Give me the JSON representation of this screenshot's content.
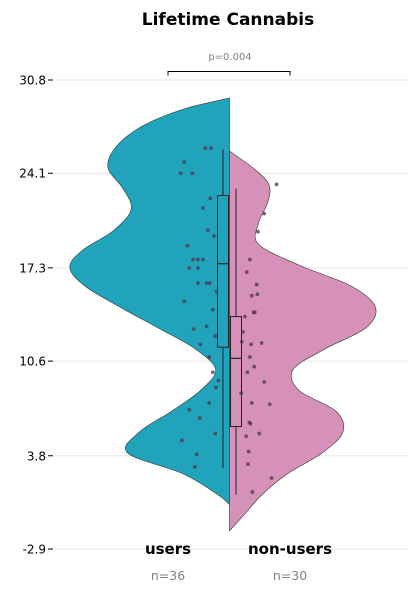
{
  "chart_data": {
    "type": "split-violin",
    "title": "Lifetime Cannabis",
    "xlabel": "",
    "ylabel": "",
    "ylim": [
      -2.9,
      30.8
    ],
    "yticks": [
      "-2.9",
      "3.8",
      "10.6",
      "17.3",
      "24.1",
      "30.8"
    ],
    "ytick_values": [
      -2.9,
      3.8,
      10.6,
      17.3,
      24.1,
      30.8
    ],
    "grid": "horizontal",
    "annotation": {
      "text": "p=0.004"
    },
    "groups": [
      {
        "name": "users",
        "n_label": "n=36",
        "color": "#21a3bb",
        "side": "left",
        "violin_range": [
          0.3,
          29.5
        ],
        "violin_profile": [
          [
            0.3,
            0
          ],
          [
            1.0,
            0.1
          ],
          [
            2.5,
            0.4
          ],
          [
            4.0,
            0.88
          ],
          [
            5.5,
            0.78
          ],
          [
            7.0,
            0.5
          ],
          [
            8.5,
            0.25
          ],
          [
            10.0,
            0.12
          ],
          [
            11.5,
            0.3
          ],
          [
            13.0,
            0.62
          ],
          [
            14.5,
            0.95
          ],
          [
            16.0,
            1.25
          ],
          [
            17.3,
            1.38
          ],
          [
            18.5,
            1.28
          ],
          [
            20.0,
            1.0
          ],
          [
            21.5,
            0.85
          ],
          [
            23.0,
            0.92
          ],
          [
            24.5,
            1.05
          ],
          [
            26.0,
            0.98
          ],
          [
            27.5,
            0.75
          ],
          [
            28.7,
            0.4
          ],
          [
            29.5,
            0
          ]
        ],
        "box": {
          "q1": 11.6,
          "median": 17.6,
          "q3": 22.5,
          "whisker_low": 2.9,
          "whisker_high": 25.8
        },
        "points": [
          [
            25.9,
            0.26
          ],
          [
            25.9,
            0.17
          ],
          [
            24.9,
            0.6
          ],
          [
            24.1,
            0.66
          ],
          [
            24.1,
            0.47
          ],
          [
            22.3,
            0.18
          ],
          [
            20.0,
            0.22
          ],
          [
            18.9,
            0.55
          ],
          [
            17.9,
            0.46
          ],
          [
            17.9,
            0.38
          ],
          [
            17.9,
            0.3
          ],
          [
            17.3,
            0.38
          ],
          [
            17.3,
            0.52
          ],
          [
            16.2,
            0.38
          ],
          [
            16.2,
            0.19
          ],
          [
            16.2,
            0.24
          ],
          [
            15.6,
            0.08
          ],
          [
            14.3,
            0.14
          ],
          [
            13.1,
            0.24
          ],
          [
            12.4,
            0.1
          ],
          [
            11.8,
            0.34
          ],
          [
            10.9,
            0.2
          ],
          [
            9.8,
            0.14
          ],
          [
            8.7,
            0.09
          ],
          [
            7.6,
            0.2
          ],
          [
            6.5,
            0.35
          ],
          [
            5.4,
            0.1
          ],
          [
            4.9,
            0.64
          ],
          [
            3.9,
            0.4
          ],
          [
            3.0,
            0.43
          ],
          [
            7.1,
            0.52
          ],
          [
            9.2,
            0.05
          ],
          [
            14.9,
            0.6
          ],
          [
            19.6,
            0.12
          ],
          [
            12.9,
            0.45
          ],
          [
            21.6,
            0.3
          ]
        ]
      },
      {
        "name": "non-users",
        "n_label": "n=30",
        "color": "#d591b8",
        "side": "right",
        "violin_range": [
          -1.6,
          25.7
        ],
        "violin_profile": [
          [
            -1.6,
            0
          ],
          [
            -0.5,
            0.12
          ],
          [
            1.0,
            0.28
          ],
          [
            2.5,
            0.5
          ],
          [
            4.0,
            0.8
          ],
          [
            5.5,
            0.98
          ],
          [
            7.0,
            0.92
          ],
          [
            8.5,
            0.6
          ],
          [
            10.0,
            0.55
          ],
          [
            11.5,
            0.83
          ],
          [
            13.0,
            1.18
          ],
          [
            14.5,
            1.26
          ],
          [
            16.0,
            1.05
          ],
          [
            17.5,
            0.6
          ],
          [
            19.0,
            0.25
          ],
          [
            20.5,
            0.25
          ],
          [
            22.0,
            0.33
          ],
          [
            23.3,
            0.34
          ],
          [
            24.5,
            0.2
          ],
          [
            25.7,
            0
          ]
        ],
        "box": {
          "q1": 5.9,
          "median": 10.8,
          "q3": 13.8,
          "whisker_low": 1.0,
          "whisker_high": 23.0
        },
        "points": [
          [
            23.3,
            0.63
          ],
          [
            21.2,
            0.43
          ],
          [
            19.9,
            0.33
          ],
          [
            17.9,
            0.2
          ],
          [
            16.1,
            0.31
          ],
          [
            15.4,
            0.32
          ],
          [
            15.3,
            0.23
          ],
          [
            14.1,
            0.28
          ],
          [
            14.1,
            0.26
          ],
          [
            13.8,
            0.12
          ],
          [
            12.0,
            0.07
          ],
          [
            11.9,
            0.39
          ],
          [
            11.8,
            0.22
          ],
          [
            10.9,
            0.2
          ],
          [
            10.2,
            0.27
          ],
          [
            9.8,
            0.16
          ],
          [
            9.1,
            0.43
          ],
          [
            7.6,
            0.23
          ],
          [
            7.5,
            0.52
          ],
          [
            6.2,
            0.19
          ],
          [
            6.1,
            0.21
          ],
          [
            5.2,
            0.14
          ],
          [
            4.1,
            0.18
          ],
          [
            3.2,
            0.17
          ],
          [
            2.2,
            0.55
          ],
          [
            1.2,
            0.24
          ],
          [
            8.3,
            0.06
          ],
          [
            12.7,
            0.09
          ],
          [
            17.0,
            0.15
          ],
          [
            5.4,
            0.35
          ]
        ]
      }
    ]
  }
}
